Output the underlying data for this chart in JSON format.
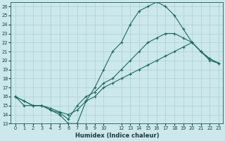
{
  "xlabel": "Humidex (Indice chaleur)",
  "bg_color": "#cce8ec",
  "grid_color": "#aacfcf",
  "line_color": "#1a6b60",
  "xlim_min": -0.5,
  "xlim_max": 23.5,
  "ylim_min": 13,
  "ylim_max": 26.5,
  "xtick_pos": [
    0,
    1,
    2,
    3,
    4,
    5,
    6,
    7,
    8,
    9,
    10,
    12,
    13,
    14,
    15,
    16,
    17,
    18,
    19,
    20,
    21,
    22,
    23
  ],
  "xtick_labels": [
    "0",
    "1",
    "2",
    "3",
    "4",
    "5",
    "6",
    "7",
    "8",
    "9",
    "10",
    "12",
    "13",
    "14",
    "15",
    "16",
    "17",
    "18",
    "19",
    "20",
    "21",
    "22",
    "23"
  ],
  "yticks": [
    13,
    14,
    15,
    16,
    17,
    18,
    19,
    20,
    21,
    22,
    23,
    24,
    25,
    26
  ],
  "hours": [
    0,
    1,
    2,
    3,
    4,
    5,
    6,
    7,
    8,
    9,
    10,
    11,
    12,
    13,
    14,
    15,
    16,
    17,
    18,
    19,
    20,
    21,
    22,
    23
  ],
  "line_curve": [
    16,
    15,
    15,
    15,
    14.5,
    14,
    13,
    13,
    15.5,
    17,
    19,
    21,
    22,
    24,
    25.5,
    26,
    26.5,
    26,
    25,
    23.5,
    22,
    21,
    20,
    19.7
  ],
  "line_upper": [
    16,
    15.5,
    15,
    15,
    14.5,
    14.2,
    13.5,
    15,
    16,
    16.5,
    17.5,
    18,
    19,
    20,
    21,
    22,
    22.5,
    23,
    23,
    22.5,
    22,
    21,
    20.2,
    19.7
  ],
  "line_lower": [
    16,
    15.5,
    15,
    15,
    14.7,
    14.3,
    14,
    14.5,
    15.5,
    16,
    17,
    17.5,
    18,
    18.5,
    19,
    19.5,
    20,
    20.5,
    21,
    21.5,
    22,
    21,
    20.2,
    19.7
  ]
}
